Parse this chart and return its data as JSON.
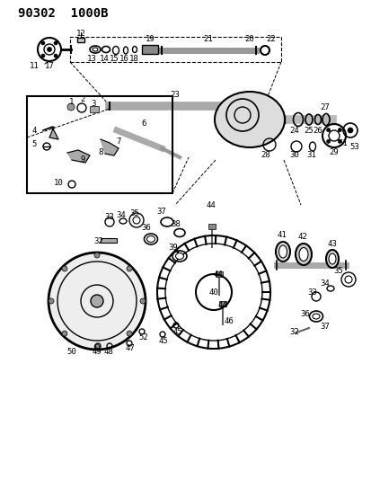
{
  "title": "90302  1000B",
  "bg_color": "#ffffff",
  "line_color": "#000000",
  "fig_width": 4.14,
  "fig_height": 5.33,
  "dpi": 100
}
